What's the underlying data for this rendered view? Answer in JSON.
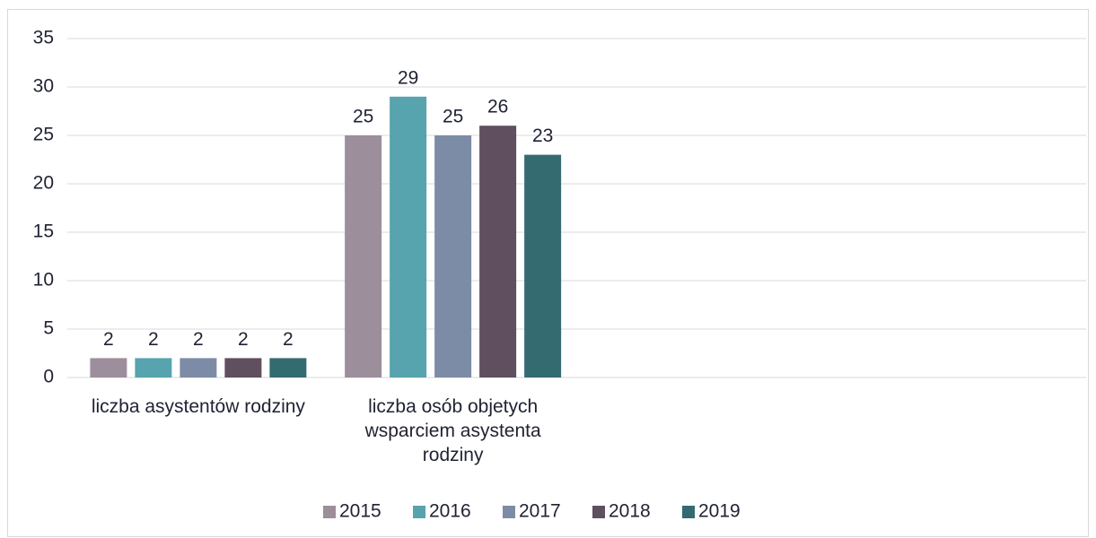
{
  "chart_data": {
    "type": "bar",
    "categories": [
      "liczba asystentów rodziny",
      "liczba osób objetych wsparciem asystenta rodziny",
      null,
      null
    ],
    "series": [
      {
        "name": "2015",
        "color": "#9d8e9c",
        "values": [
          2,
          25,
          null,
          null
        ]
      },
      {
        "name": "2016",
        "color": "#57a3ae",
        "values": [
          2,
          29,
          null,
          null
        ]
      },
      {
        "name": "2017",
        "color": "#7d8ca6",
        "values": [
          2,
          25,
          null,
          null
        ]
      },
      {
        "name": "2018",
        "color": "#5f4f5f",
        "values": [
          2,
          26,
          null,
          null
        ]
      },
      {
        "name": "2019",
        "color": "#346b71",
        "values": [
          2,
          23,
          null,
          null
        ]
      }
    ],
    "ylim": [
      0,
      35
    ],
    "yticks": [
      0,
      5,
      10,
      15,
      20,
      25,
      30,
      35
    ],
    "grid": true,
    "legend": "bottom"
  }
}
